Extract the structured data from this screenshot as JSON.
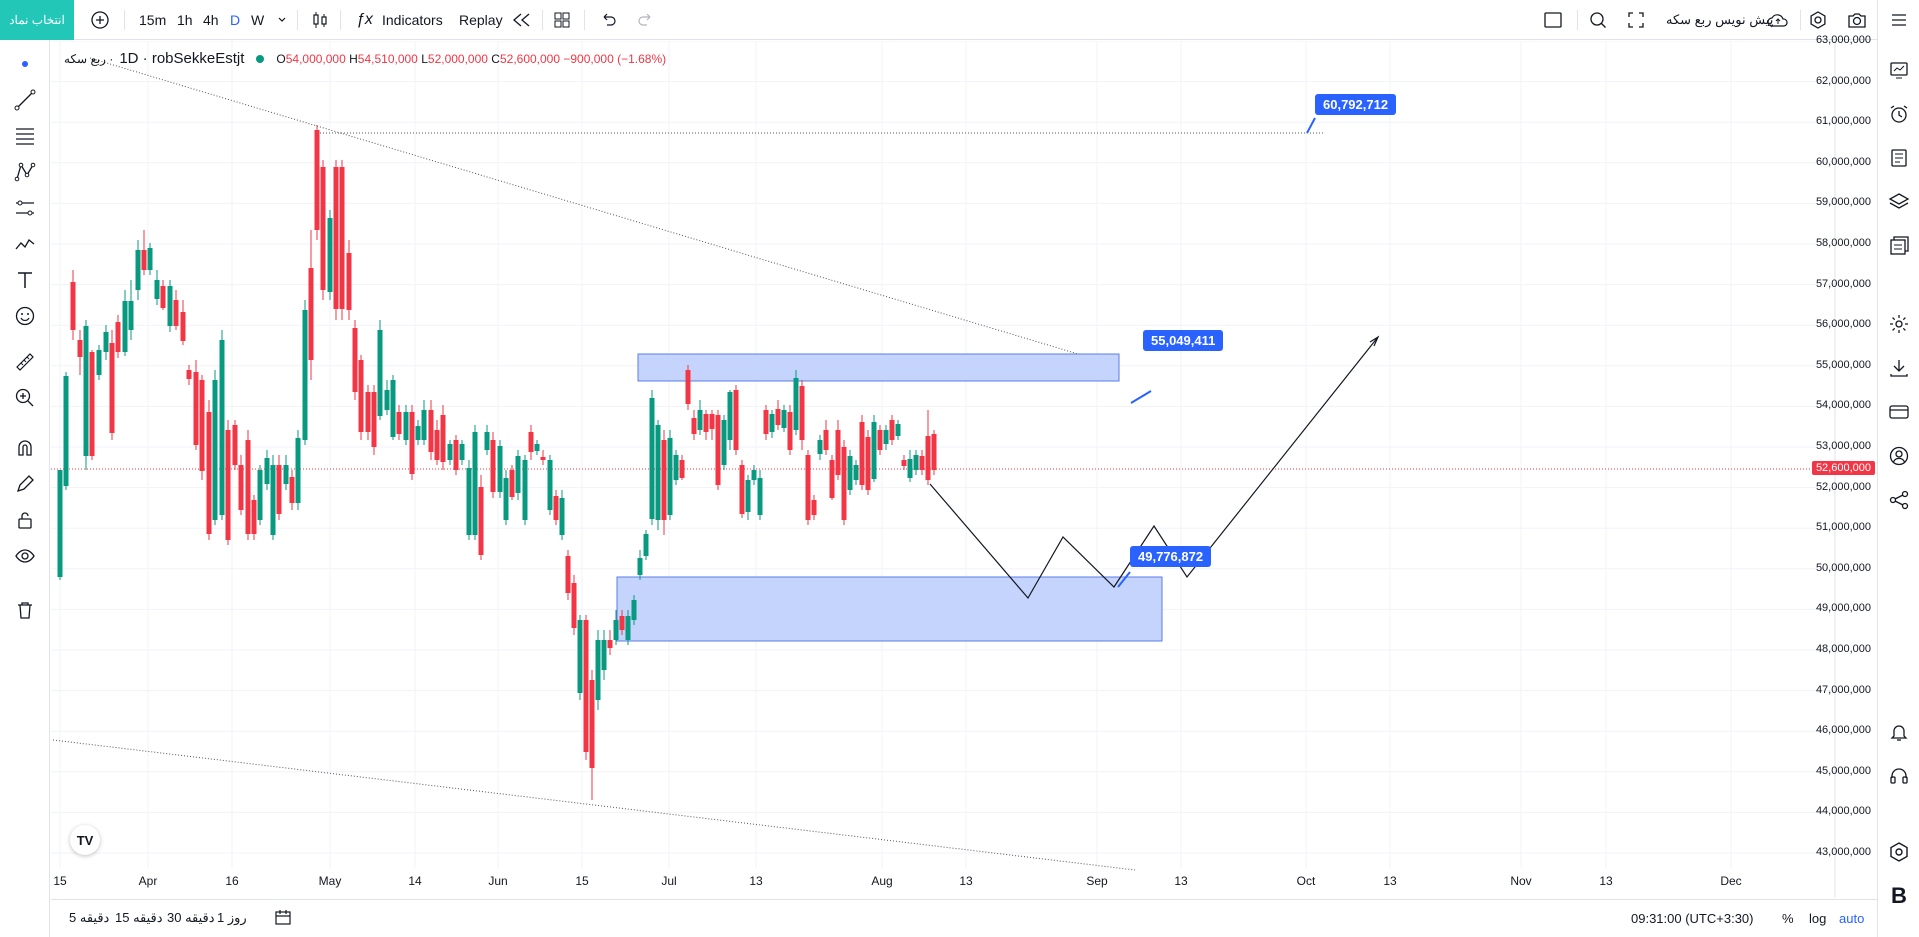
{
  "topbar": {
    "symbol_button": "انتخاب نماد",
    "intervals": [
      "15m",
      "1h",
      "4h",
      "D",
      "W"
    ],
    "selected_interval": "D",
    "indicators_label": "Indicators",
    "replay_label": "Replay",
    "layout_name": "پیش نویس ربع سکه"
  },
  "legend": {
    "symbol_prefix": "ربع سکه ·",
    "symbol": "1D · robSekkeEstjt",
    "open_label": "O",
    "open": "54,000,000",
    "high_label": "H",
    "high": "54,510,000",
    "low_label": "L",
    "low": "52,000,000",
    "close_label": "C",
    "close": "52,600,000",
    "change": "−900,000 (−1.68%)"
  },
  "price_axis": {
    "labels": [
      "63,000,000",
      "62,000,000",
      "61,000,000",
      "60,000,000",
      "59,000,000",
      "58,000,000",
      "57,000,000",
      "56,000,000",
      "55,000,000",
      "54,000,000",
      "53,000,000",
      "52,000,000",
      "51,000,000",
      "50,000,000",
      "49,000,000",
      "48,000,000",
      "47,000,000",
      "46,000,000",
      "45,000,000",
      "44,000,000",
      "43,000,000"
    ],
    "current_price": "52,600,000"
  },
  "time_axis": {
    "labels": [
      "15",
      "Apr",
      "16",
      "May",
      "14",
      "Jun",
      "15",
      "Jul",
      "13",
      "Aug",
      "13",
      "Sep",
      "13",
      "Oct",
      "13",
      "Nov",
      "13",
      "Dec"
    ]
  },
  "callouts": {
    "top": "60,792,712",
    "mid": "55,049,411",
    "low": "49,776,872"
  },
  "bottombar": {
    "ranges": [
      "5 دقیقه",
      "15 دقیقه",
      "30 دقیقه",
      "1 روز"
    ],
    "time": "09:31:00 (UTC+3:30)",
    "percent": "%",
    "log": "log",
    "auto": "auto"
  },
  "colors": {
    "up": "#089981",
    "down": "#f23645",
    "accent": "#2962ff",
    "zone_fill": "#bbcdfc",
    "zone_border": "#5b7de8",
    "symbol_button_bg": "#22c7b8"
  },
  "icons": {
    "tv_logo": "TV"
  }
}
